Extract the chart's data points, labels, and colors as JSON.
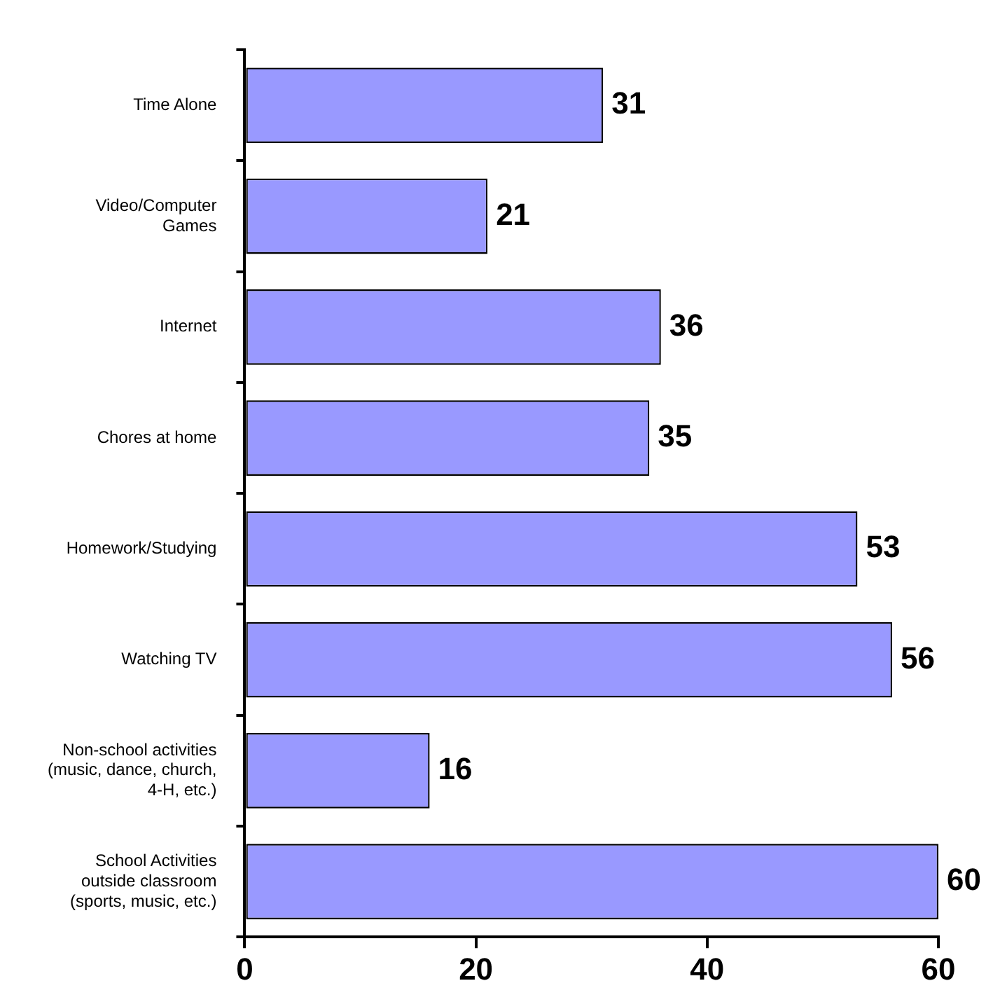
{
  "chart_data": {
    "type": "bar",
    "orientation": "horizontal",
    "categories": [
      "Time Alone",
      "Video/Computer Games",
      "Internet",
      "Chores at home",
      "Homework/Studying",
      "Watching TV",
      "Non-school activities (music, dance, church, 4-H, etc.)",
      "School Activities outside classroom (sports, music, etc.)"
    ],
    "values": [
      31,
      21,
      36,
      35,
      53,
      56,
      16,
      60
    ],
    "color": "#9999ff",
    "xlim": [
      0,
      60
    ],
    "xticks": [
      0,
      20,
      40,
      60
    ],
    "data_labels": true,
    "grid": false,
    "legend": false
  }
}
